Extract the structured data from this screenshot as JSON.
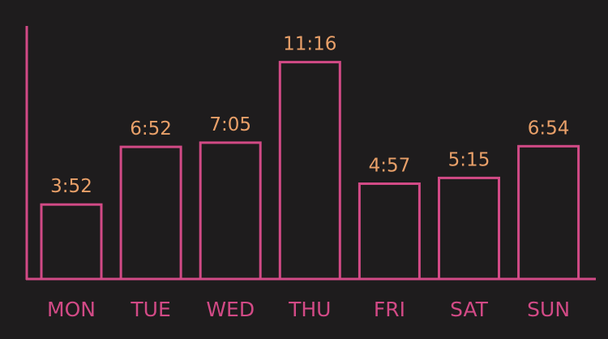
{
  "colors": {
    "background": "#1e1c1d",
    "bar_stroke": "#d24a86",
    "axis": "#d24a86",
    "value_text": "#e9a069",
    "category_text": "#d24a86"
  },
  "chart_data": {
    "type": "bar",
    "title": "",
    "xlabel": "",
    "ylabel": "",
    "categories": [
      "MON",
      "TUE",
      "WED",
      "THU",
      "FRI",
      "SAT",
      "SUN"
    ],
    "values_minutes": [
      232,
      412,
      425,
      676,
      297,
      315,
      414
    ],
    "value_labels": [
      "3:52",
      "6:52",
      "7:05",
      "11:16",
      "4:57",
      "5:15",
      "6:54"
    ],
    "bar_style": "outline",
    "grid": false,
    "legend": "none",
    "ylim": [
      0,
      720
    ]
  }
}
